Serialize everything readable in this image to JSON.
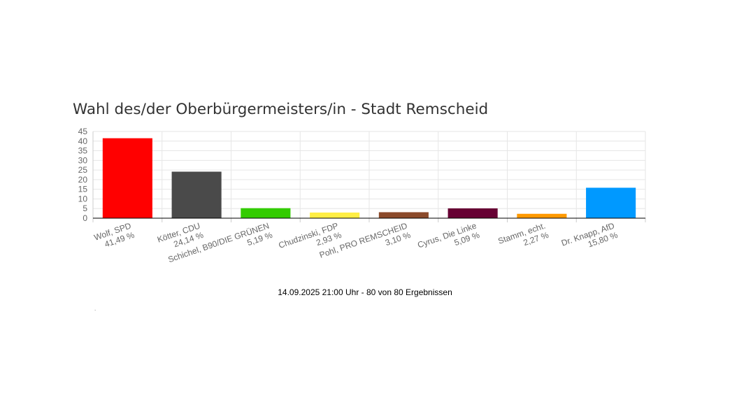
{
  "title": "Wahl des/der Oberbürgermeisters/in - Stadt Remscheid",
  "footer": "14.09.2025 21:00 Uhr - 80 von 80 Ergebnissen",
  "dot": ".",
  "chart_data": {
    "type": "bar",
    "title": "Wahl des/der Oberbürgermeisters/in - Stadt Remscheid",
    "xlabel": "",
    "ylabel": "",
    "ylim": [
      0,
      45
    ],
    "yticks": [
      0,
      5,
      10,
      15,
      20,
      25,
      30,
      35,
      40,
      45
    ],
    "grid": true,
    "legend": "none",
    "categories": [
      "Wolf, SPD",
      "Kötter, CDU",
      "Schichel, B90/DIE GRÜNEN",
      "Chudzinski, FDP",
      "Pohl, PRO REMSCHEID",
      "Cyrus, Die Linke",
      "Stamm, echt.",
      "Dr. Knapp, AfD"
    ],
    "value_labels": [
      "41,49 %",
      "24,14 %",
      "5,19 %",
      "2,93 %",
      "3,10 %",
      "5,09 %",
      "2,27 %",
      "15,80 %"
    ],
    "values": [
      41.49,
      24.14,
      5.19,
      2.93,
      3.1,
      5.09,
      2.27,
      15.8
    ],
    "colors": [
      "#ff0000",
      "#4a4a4a",
      "#33cc00",
      "#ffee44",
      "#8b4a2b",
      "#660033",
      "#ff9900",
      "#0099ff"
    ]
  }
}
